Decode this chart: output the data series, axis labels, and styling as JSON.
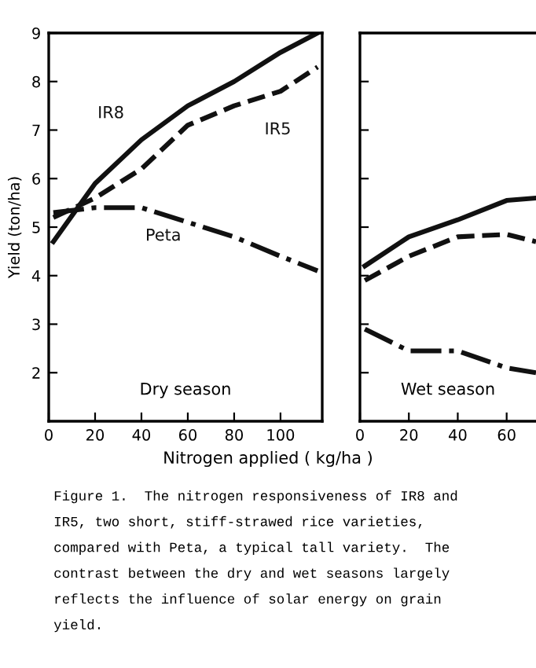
{
  "chart_data": [
    {
      "type": "line",
      "ylabel": "Yield (ton/ha)",
      "xlabel": "Nitrogen applied ( kg/ha )",
      "x": [
        2,
        20,
        40,
        60,
        80,
        100,
        116
      ],
      "series": [
        {
          "name": "IR8",
          "color": "#111111",
          "line_style": "solid",
          "values": [
            4.7,
            5.9,
            6.8,
            7.5,
            8.0,
            8.6,
            9.0
          ]
        },
        {
          "name": "IR5",
          "color": "#111111",
          "line_style": "dashed",
          "values": [
            5.2,
            5.6,
            6.2,
            7.1,
            7.5,
            7.8,
            8.3
          ]
        },
        {
          "name": "Peta",
          "color": "#111111",
          "line_style": "dashdot",
          "values": [
            5.3,
            5.4,
            5.4,
            5.1,
            4.8,
            4.4,
            4.1
          ]
        }
      ],
      "xlim": [
        0,
        118
      ],
      "xticks": [
        0,
        20,
        40,
        60,
        80,
        100
      ],
      "ylim": [
        1,
        9
      ],
      "yticks": [
        2,
        3,
        4,
        5,
        6,
        7,
        8,
        9
      ],
      "grid": false,
      "legend": false,
      "annotations": [
        "Dry season",
        "Figure 1.  The nitrogen responsiveness of IR8 and IR5, two short, stiff-strawed rice varieties, compared with Peta, a typical tall variety.  The contrast between the dry and wet seasons largely reflects the influence of solar energy on grain yield."
      ]
    },
    {
      "type": "line",
      "x": [
        2,
        20,
        40,
        60,
        72
      ],
      "series": [
        {
          "color": "#111111",
          "line_style": "solid",
          "values": [
            4.2,
            4.8,
            5.15,
            5.55,
            5.6
          ]
        },
        {
          "color": "#111111",
          "line_style": "dashed",
          "values": [
            3.9,
            4.4,
            4.8,
            4.85,
            4.7
          ]
        },
        {
          "color": "#111111",
          "line_style": "dashdot",
          "values": [
            2.9,
            2.45,
            2.45,
            2.1,
            2.0
          ]
        }
      ],
      "xlim": [
        0,
        72
      ],
      "xticks": [
        0,
        20,
        40,
        60
      ],
      "ylim": [
        1,
        9
      ],
      "yticks": [
        2,
        3,
        4,
        5,
        6,
        7,
        8,
        9
      ],
      "tick_labels": "x",
      "grid": false,
      "legend": false,
      "annotations": [
        "Wet season"
      ]
    }
  ]
}
